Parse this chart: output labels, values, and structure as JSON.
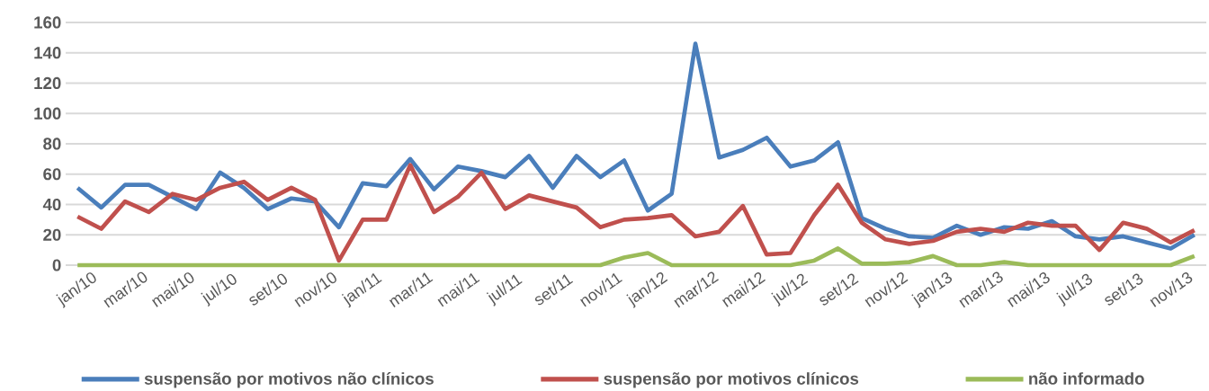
{
  "chart_data": {
    "type": "line",
    "categories": [
      "jan/10",
      null,
      "mar/10",
      null,
      "mai/10",
      null,
      "jul/10",
      null,
      "set/10",
      null,
      "nov/10",
      null,
      "jan/11",
      null,
      "mar/11",
      null,
      "mai/11",
      null,
      "jul/11",
      null,
      "set/11",
      null,
      "nov/11",
      null,
      "jan/12",
      null,
      "mar/12",
      null,
      "mai/12",
      null,
      "jul/12",
      null,
      "set/12",
      null,
      "nov/12",
      null,
      "jan/13",
      null,
      "mar/13",
      null,
      "mai/13",
      null,
      "jul/13",
      null,
      "set/13",
      null,
      "nov/13",
      null
    ],
    "series": [
      {
        "name": "suspensão por motivos não clínicos",
        "color": "#4a7ebb",
        "values": [
          51,
          38,
          53,
          53,
          45,
          37,
          61,
          51,
          37,
          44,
          42,
          25,
          54,
          52,
          70,
          50,
          65,
          62,
          58,
          72,
          51,
          72,
          58,
          69,
          36,
          47,
          146,
          71,
          76,
          84,
          65,
          69,
          81,
          31,
          24,
          19,
          18,
          26,
          20,
          25,
          24,
          29,
          19,
          17,
          19,
          15,
          11,
          20
        ]
      },
      {
        "name": "suspensão por motivos clínicos",
        "color": "#c0504d",
        "values": [
          32,
          24,
          42,
          35,
          47,
          43,
          51,
          55,
          43,
          51,
          43,
          3,
          30,
          30,
          66,
          35,
          45,
          61,
          37,
          46,
          42,
          38,
          25,
          30,
          31,
          33,
          19,
          22,
          39,
          7,
          8,
          33,
          53,
          28,
          17,
          14,
          16,
          22,
          24,
          22,
          28,
          26,
          26,
          10,
          28,
          24,
          15,
          23
        ]
      },
      {
        "name": "não informado",
        "color": "#9bbb59",
        "values": [
          0,
          0,
          0,
          0,
          0,
          0,
          0,
          0,
          0,
          0,
          0,
          0,
          0,
          0,
          0,
          0,
          0,
          0,
          0,
          0,
          0,
          0,
          0,
          5,
          8,
          0,
          0,
          0,
          0,
          0,
          0,
          3,
          11,
          1,
          1,
          2,
          6,
          0,
          0,
          2,
          0,
          0,
          0,
          0,
          0,
          0,
          0,
          6
        ]
      }
    ],
    "ylim": [
      0,
      160
    ],
    "yticks": [
      0,
      20,
      40,
      60,
      80,
      100,
      120,
      140,
      160
    ],
    "grid": "y",
    "legend": "bottom",
    "marker": "none",
    "line_style": "solid"
  }
}
